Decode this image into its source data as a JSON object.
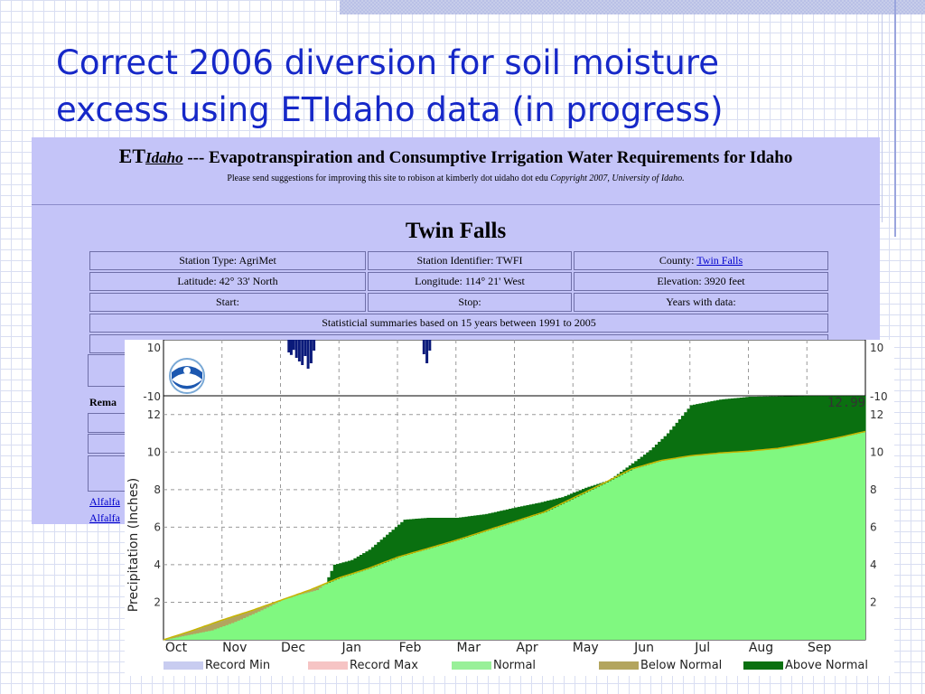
{
  "slide": {
    "title_line1": "Correct 2006 diversion for soil moisture",
    "title_line2": "excess using ETIdaho data (in progress)"
  },
  "etidaho": {
    "brand": "ET",
    "brand_sub": "Idaho",
    "header_title": "--- Evapotranspiration and Consumptive Irrigation Water Requirements for Idaho",
    "note_plain": "Please send suggestions for improving this site to robison at kimberly dot uidaho dot edu ",
    "note_italic": "Copyright 2007, University of Idaho.",
    "station_name": "Twin Falls",
    "station_type": "Station Type: AgriMet",
    "station_identifier": "Station Identifier: TWFI",
    "county_label": "County: ",
    "county_link": "Twin Falls",
    "latitude": "Latitude: 42° 33' North",
    "longitude": "Longitude: 114° 21' West",
    "elevation": "Elevation: 3920 feet",
    "start": "Start:",
    "stop": "Stop:",
    "years_with_data": "Years with data:",
    "summary": "Statisticial summaries based on 15 years between 1991 to 2005",
    "remarks_fragment": "Rema",
    "link_fragment_1": "Alfalfa",
    "link_fragment_2": "Alfalfa"
  },
  "chart_data": {
    "type": "area",
    "ylabel": "Precipitation (Inches)",
    "xlabel": "",
    "categories": [
      "Oct",
      "Nov",
      "Dec",
      "Jan",
      "Feb",
      "Mar",
      "Apr",
      "May",
      "Jun",
      "Jul",
      "Aug",
      "Sep"
    ],
    "ylim": [
      0,
      13
    ],
    "yticks": [
      2,
      4,
      6,
      8,
      10,
      12
    ],
    "annotation": "12.99",
    "grid": true,
    "legend_position": "bottom",
    "legend": [
      {
        "name": "Record Min",
        "color": "#c8ccf0"
      },
      {
        "name": "Record Max",
        "color": "#f6c4c4"
      },
      {
        "name": "Normal",
        "color": "#99f099"
      },
      {
        "name": "Below Normal",
        "color": "#b3a55e"
      },
      {
        "name": "Above Normal",
        "color": "#0a7010"
      }
    ],
    "colors": {
      "normal_fill": "#80f880",
      "above": "#0a7010",
      "below": "#b3a55e",
      "normal_line": "#c8b400"
    },
    "normal": {
      "x": [
        0,
        0.5,
        1,
        1.5,
        2,
        2.5,
        3,
        3.5,
        4,
        4.5,
        5,
        5.5,
        6,
        6.5,
        7,
        7.5,
        8,
        8.5,
        9,
        9.5,
        10,
        10.5,
        11,
        11.5,
        12
      ],
      "y": [
        0,
        0.5,
        1.05,
        1.55,
        2.1,
        2.65,
        3.3,
        3.8,
        4.4,
        4.85,
        5.3,
        5.8,
        6.3,
        6.8,
        7.55,
        8.3,
        9.1,
        9.55,
        9.8,
        9.95,
        10.05,
        10.2,
        10.45,
        10.75,
        11.1
      ]
    },
    "actual": {
      "x": [
        0,
        0.4,
        0.8,
        1.2,
        1.6,
        2.0,
        2.3,
        2.6,
        2.75,
        2.9,
        3.2,
        3.5,
        3.8,
        4.1,
        4.5,
        5.0,
        5.5,
        6.0,
        6.4,
        6.8,
        7.2,
        7.6,
        8.0,
        8.3,
        8.6,
        9.0,
        9.5,
        10.0,
        11.0,
        12.0
      ],
      "y": [
        0,
        0.25,
        0.5,
        0.95,
        1.5,
        2.1,
        2.4,
        2.65,
        3.0,
        4.0,
        4.25,
        4.8,
        5.6,
        6.4,
        6.5,
        6.5,
        6.7,
        7.05,
        7.3,
        7.6,
        8.1,
        8.5,
        9.4,
        10.1,
        11.0,
        12.5,
        12.8,
        12.95,
        12.99,
        12.99
      ]
    },
    "daily_departure": {
      "ylim": [
        -10,
        10
      ],
      "yticks": [
        10,
        -10
      ],
      "events": [
        {
          "x": 2.12,
          "y": 3.5
        },
        {
          "x": 2.16,
          "y": 4.2
        },
        {
          "x": 2.2,
          "y": 2.8
        },
        {
          "x": 2.25,
          "y": 5.0
        },
        {
          "x": 2.3,
          "y": 6.0
        },
        {
          "x": 2.35,
          "y": 7.0
        },
        {
          "x": 2.4,
          "y": 4.5
        },
        {
          "x": 2.45,
          "y": 8.0
        },
        {
          "x": 2.5,
          "y": 6.5
        },
        {
          "x": 2.55,
          "y": 3.0
        },
        {
          "x": 4.43,
          "y": 4.0
        },
        {
          "x": 4.48,
          "y": 6.5
        },
        {
          "x": 4.53,
          "y": 3.0
        }
      ]
    }
  }
}
